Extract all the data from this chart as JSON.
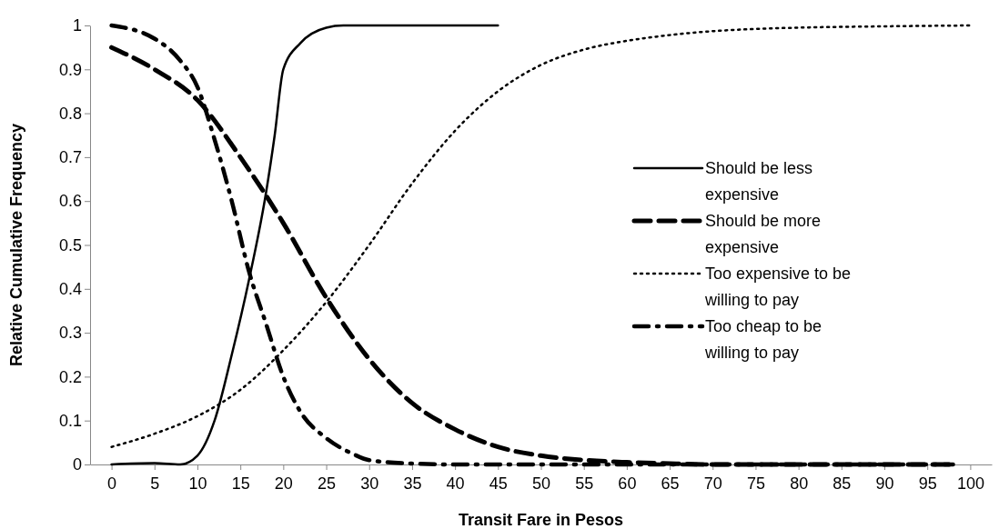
{
  "chart_data": {
    "type": "line",
    "xlabel": "Transit Fare in Pesos",
    "ylabel": "Relative Cumulative Frequency",
    "xlim": [
      -2.5,
      102.5
    ],
    "xticks": [
      0,
      5,
      10,
      15,
      20,
      25,
      30,
      35,
      40,
      45,
      50,
      55,
      60,
      65,
      70,
      75,
      80,
      85,
      90,
      95,
      100
    ],
    "ylim": [
      0,
      1
    ],
    "yticks": [
      0,
      0.1,
      0.2,
      0.3,
      0.4,
      0.5,
      0.6,
      0.7,
      0.8,
      0.9,
      1
    ],
    "grid": false,
    "legend": "right",
    "marker": "none",
    "series": [
      {
        "name": "Should be less expensive",
        "color": "#000000",
        "line_style": "solid",
        "x": [
          0,
          5,
          8,
          10,
          12,
          14,
          16,
          18,
          19,
          20,
          22,
          25,
          27,
          30,
          45
        ],
        "values": [
          0,
          0.003,
          0,
          0.02,
          0.1,
          0.25,
          0.42,
          0.62,
          0.75,
          0.9,
          0.96,
          0.995,
          1,
          1,
          1
        ]
      },
      {
        "name": "Should be more expensive",
        "color": "#000000",
        "line_style": "dashed",
        "x": [
          0,
          5,
          10,
          15,
          20,
          25,
          30,
          35,
          40,
          45,
          50,
          55,
          60,
          65,
          70,
          98
        ],
        "values": [
          0.95,
          0.9,
          0.83,
          0.7,
          0.55,
          0.38,
          0.24,
          0.14,
          0.08,
          0.04,
          0.02,
          0.01,
          0.005,
          0.002,
          0,
          0
        ]
      },
      {
        "name": "Too expensive to be willing to pay",
        "color": "#000000",
        "line_style": "dotted",
        "x": [
          0,
          5,
          10,
          15,
          20,
          25,
          30,
          35,
          40,
          45,
          50,
          55,
          60,
          65,
          70,
          75,
          80,
          90,
          100
        ],
        "values": [
          0.04,
          0.07,
          0.11,
          0.17,
          0.26,
          0.37,
          0.5,
          0.64,
          0.76,
          0.85,
          0.91,
          0.945,
          0.965,
          0.978,
          0.987,
          0.992,
          0.995,
          0.998,
          1
        ]
      },
      {
        "name": "Too cheap to be willing to pay",
        "color": "#000000",
        "line_style": "dashdot",
        "x": [
          0,
          5,
          8,
          10,
          12,
          14,
          16,
          18,
          20,
          22,
          25,
          28,
          30,
          35,
          40,
          98
        ],
        "values": [
          1,
          0.97,
          0.92,
          0.86,
          0.74,
          0.6,
          0.44,
          0.32,
          0.2,
          0.12,
          0.06,
          0.025,
          0.01,
          0.002,
          0,
          0
        ]
      }
    ]
  }
}
